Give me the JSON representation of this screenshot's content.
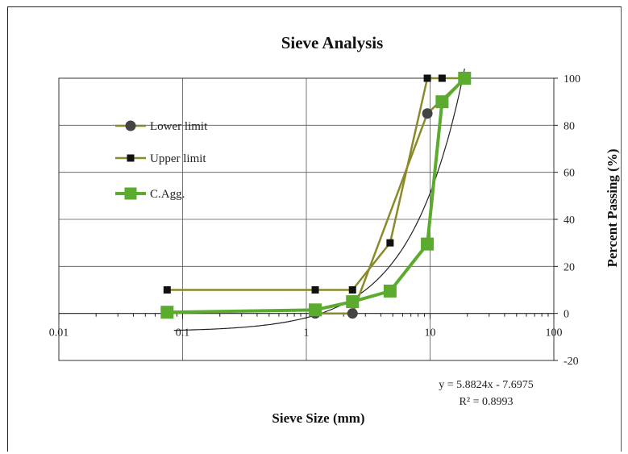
{
  "chart_data": {
    "type": "line",
    "title": "Sieve Analysis",
    "xlabel": "Sieve Size (mm)",
    "ylabel": "Percent Passing (%)",
    "xscale": "log",
    "xlim": [
      0.01,
      100
    ],
    "ylim": [
      -20,
      100
    ],
    "xticks": [
      "0.01",
      "0.1",
      "1",
      "10",
      "100"
    ],
    "yticks": [
      "-20",
      "0",
      "20",
      "40",
      "60",
      "80",
      "100"
    ],
    "grid": true,
    "legend_position": "upper-left",
    "series": [
      {
        "name": "Lower limit",
        "color": "#8a8a2a",
        "marker": "circle",
        "marker_color": "#444444",
        "x": [
          1.18,
          2.36,
          9.5,
          19
        ],
        "y": [
          0,
          0,
          85,
          100
        ]
      },
      {
        "name": "Upper limit",
        "color": "#8a8a2a",
        "marker": "square",
        "marker_color": "#111111",
        "x": [
          0.075,
          1.18,
          2.36,
          4.75,
          9.5,
          12.5,
          19
        ],
        "y": [
          10,
          10,
          10,
          30,
          100,
          100,
          100
        ]
      },
      {
        "name": "C.Agg.",
        "color": "#5aab2e",
        "marker": "square",
        "marker_color": "#5aab2e",
        "x": [
          0.075,
          1.18,
          2.36,
          4.75,
          9.5,
          12.5,
          19
        ],
        "y": [
          0.5,
          1.5,
          5,
          9.5,
          29.5,
          90,
          100
        ]
      }
    ],
    "trendline": {
      "color": "#222222",
      "slope": 5.8824,
      "intercept": -7.6975,
      "equation": "y = 5.8824x - 7.6975",
      "r2_text": "R² = 0.8993"
    }
  }
}
